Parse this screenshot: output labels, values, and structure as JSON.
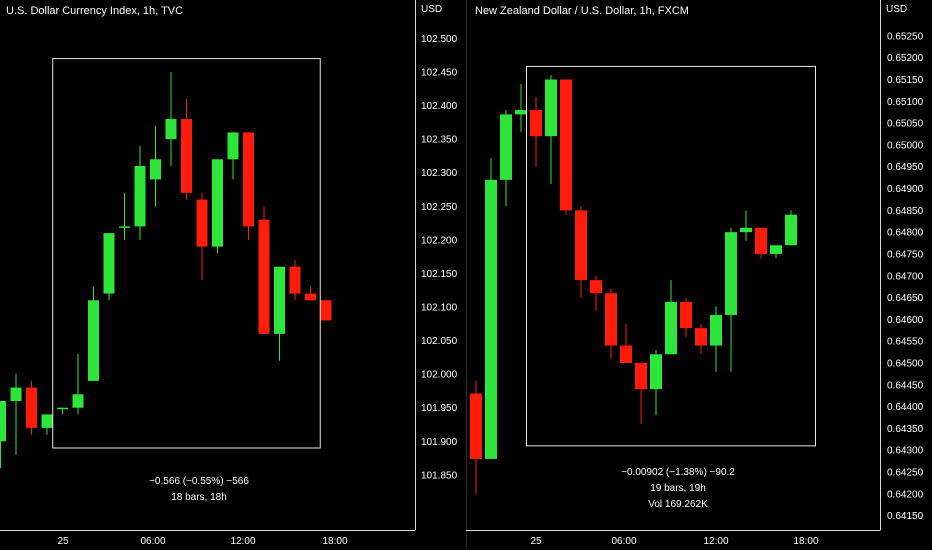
{
  "colors": {
    "up": "#2ee53a",
    "down": "#ff1c0a",
    "axis_line": "#d8d8d8",
    "text": "#ffffff",
    "background": "#000000"
  },
  "panels": [
    {
      "id": "left",
      "title": "U.S. Dollar Currency Index, 1h, TVC",
      "currency": "USD",
      "stats": [
        "−0.566 (−0.55%) −566",
        "18 bars, 18h"
      ],
      "x_ticks": [
        "25",
        "06:00",
        "12:00",
        "18:00"
      ]
    },
    {
      "id": "right",
      "title": "New Zealand Dollar / U.S. Dollar, 1h, FXCM",
      "currency": "USD",
      "stats": [
        "−0.00902 (−1.38%) −90.2",
        "19 bars, 19h",
        "Vol 169.262K"
      ],
      "x_ticks": [
        "25",
        "06:00",
        "12:00",
        "18:00"
      ]
    }
  ],
  "chart_data": [
    {
      "type": "candlestick",
      "title": "U.S. Dollar Currency Index, 1h, TVC",
      "ylabel": "USD",
      "ylim": [
        101.82,
        102.52
      ],
      "y_ticks": [
        101.85,
        101.9,
        101.95,
        102.0,
        102.05,
        102.1,
        102.15,
        102.2,
        102.25,
        102.3,
        102.35,
        102.4,
        102.45,
        102.5
      ],
      "x_ticks": [
        "25",
        "06:00",
        "12:00",
        "18:00"
      ],
      "measure_range": {
        "from_candle": 4,
        "to_candle": 20,
        "y_top": 102.47,
        "y_bottom": 101.89
      },
      "candles": [
        {
          "o": 101.9,
          "h": 101.96,
          "l": 101.86,
          "c": 101.96
        },
        {
          "o": 101.96,
          "h": 102.0,
          "l": 101.88,
          "c": 101.98
        },
        {
          "o": 101.98,
          "h": 101.99,
          "l": 101.91,
          "c": 101.92
        },
        {
          "o": 101.92,
          "h": 101.94,
          "l": 101.91,
          "c": 101.94
        },
        {
          "o": 101.95,
          "h": 101.95,
          "l": 101.94,
          "c": 101.95
        },
        {
          "o": 101.95,
          "h": 102.03,
          "l": 101.94,
          "c": 101.97
        },
        {
          "o": 101.99,
          "h": 102.13,
          "l": 101.99,
          "c": 102.11
        },
        {
          "o": 102.12,
          "h": 102.21,
          "l": 102.11,
          "c": 102.21
        },
        {
          "o": 102.22,
          "h": 102.27,
          "l": 102.2,
          "c": 102.22
        },
        {
          "o": 102.22,
          "h": 102.34,
          "l": 102.2,
          "c": 102.31
        },
        {
          "o": 102.29,
          "h": 102.37,
          "l": 102.25,
          "c": 102.32
        },
        {
          "o": 102.35,
          "h": 102.45,
          "l": 102.31,
          "c": 102.38
        },
        {
          "o": 102.38,
          "h": 102.41,
          "l": 102.26,
          "c": 102.27
        },
        {
          "o": 102.26,
          "h": 102.27,
          "l": 102.14,
          "c": 102.19
        },
        {
          "o": 102.19,
          "h": 102.32,
          "l": 102.18,
          "c": 102.32
        },
        {
          "o": 102.32,
          "h": 102.36,
          "l": 102.29,
          "c": 102.36
        },
        {
          "o": 102.36,
          "h": 102.36,
          "l": 102.2,
          "c": 102.22
        },
        {
          "o": 102.23,
          "h": 102.25,
          "l": 102.06,
          "c": 102.06
        },
        {
          "o": 102.06,
          "h": 102.16,
          "l": 102.02,
          "c": 102.16
        },
        {
          "o": 102.16,
          "h": 102.17,
          "l": 102.11,
          "c": 102.12
        },
        {
          "o": 102.12,
          "h": 102.13,
          "l": 102.11,
          "c": 102.11
        },
        {
          "o": 102.11,
          "h": 102.11,
          "l": 102.08,
          "c": 102.08
        }
      ]
    },
    {
      "type": "candlestick",
      "title": "New Zealand Dollar / U.S. Dollar, 1h, FXCM",
      "ylabel": "USD",
      "ylim": [
        0.6414,
        0.65275
      ],
      "y_ticks": [
        0.6415,
        0.642,
        0.6425,
        0.643,
        0.6435,
        0.644,
        0.6445,
        0.645,
        0.6455,
        0.646,
        0.6465,
        0.647,
        0.6475,
        0.648,
        0.6485,
        0.649,
        0.6495,
        0.65,
        0.6505,
        0.651,
        0.6515,
        0.652,
        0.6525
      ],
      "x_ticks": [
        "25",
        "06:00",
        "12:00",
        "18:00"
      ],
      "measure_range": {
        "from_candle": 4,
        "to_candle": 22,
        "y_top": 0.6518,
        "y_bottom": 0.6431
      },
      "candles": [
        {
          "o": 0.6443,
          "h": 0.6446,
          "l": 0.642,
          "c": 0.6428
        },
        {
          "o": 0.6428,
          "h": 0.6497,
          "l": 0.6428,
          "c": 0.6492
        },
        {
          "o": 0.6492,
          "h": 0.6508,
          "l": 0.6486,
          "c": 0.6507
        },
        {
          "o": 0.6507,
          "h": 0.6514,
          "l": 0.6503,
          "c": 0.6508
        },
        {
          "o": 0.6508,
          "h": 0.6511,
          "l": 0.6495,
          "c": 0.6502
        },
        {
          "o": 0.6502,
          "h": 0.6516,
          "l": 0.6491,
          "c": 0.6515
        },
        {
          "o": 0.6515,
          "h": 0.6515,
          "l": 0.6484,
          "c": 0.6485
        },
        {
          "o": 0.6485,
          "h": 0.6486,
          "l": 0.6465,
          "c": 0.6469
        },
        {
          "o": 0.6469,
          "h": 0.647,
          "l": 0.6462,
          "c": 0.6466
        },
        {
          "o": 0.6466,
          "h": 0.6467,
          "l": 0.6451,
          "c": 0.6454
        },
        {
          "o": 0.6454,
          "h": 0.6459,
          "l": 0.645,
          "c": 0.645
        },
        {
          "o": 0.645,
          "h": 0.645,
          "l": 0.6436,
          "c": 0.6444
        },
        {
          "o": 0.6444,
          "h": 0.6453,
          "l": 0.6438,
          "c": 0.6452
        },
        {
          "o": 0.6452,
          "h": 0.6469,
          "l": 0.6452,
          "c": 0.6464
        },
        {
          "o": 0.6464,
          "h": 0.6465,
          "l": 0.6456,
          "c": 0.6458
        },
        {
          "o": 0.6458,
          "h": 0.6459,
          "l": 0.6452,
          "c": 0.6454
        },
        {
          "o": 0.6454,
          "h": 0.6463,
          "l": 0.6448,
          "c": 0.6461
        },
        {
          "o": 0.6461,
          "h": 0.6481,
          "l": 0.6448,
          "c": 0.648
        },
        {
          "o": 0.648,
          "h": 0.6485,
          "l": 0.6478,
          "c": 0.6481
        },
        {
          "o": 0.6481,
          "h": 0.6481,
          "l": 0.6474,
          "c": 0.6475
        },
        {
          "o": 0.6475,
          "h": 0.6477,
          "l": 0.6474,
          "c": 0.6477
        },
        {
          "o": 0.6477,
          "h": 0.6485,
          "l": 0.6477,
          "c": 0.6484
        }
      ]
    }
  ]
}
